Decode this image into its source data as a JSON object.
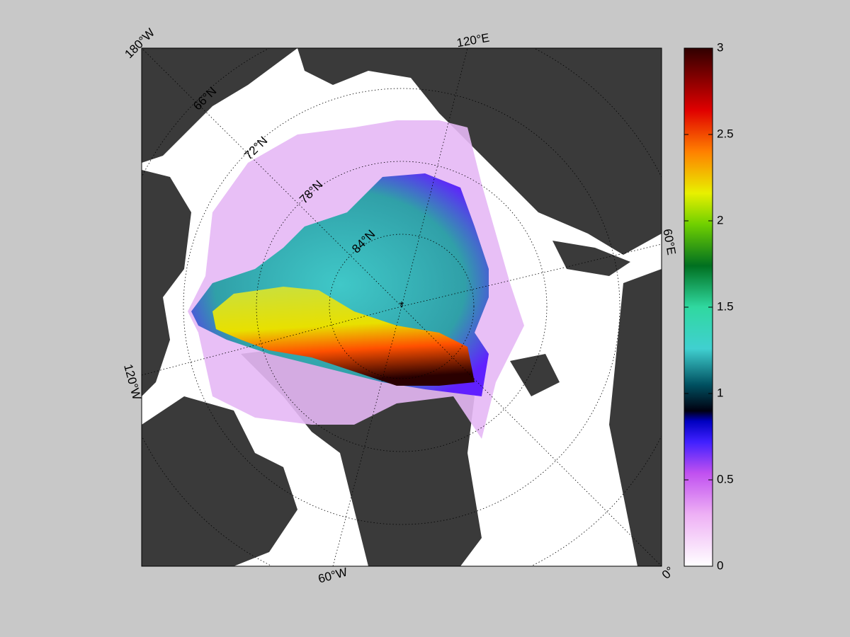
{
  "map": {
    "longitude_labels": [
      "180°W",
      "120°E",
      "60°E",
      "0°",
      "60°W",
      "120°W"
    ],
    "latitude_labels": [
      "66°N",
      "72°N",
      "78°N",
      "84°N"
    ],
    "colorbar": {
      "lim": [
        0,
        3
      ],
      "ticks": [
        0,
        0.5,
        1,
        1.5,
        2,
        2.5,
        3
      ]
    }
  }
}
